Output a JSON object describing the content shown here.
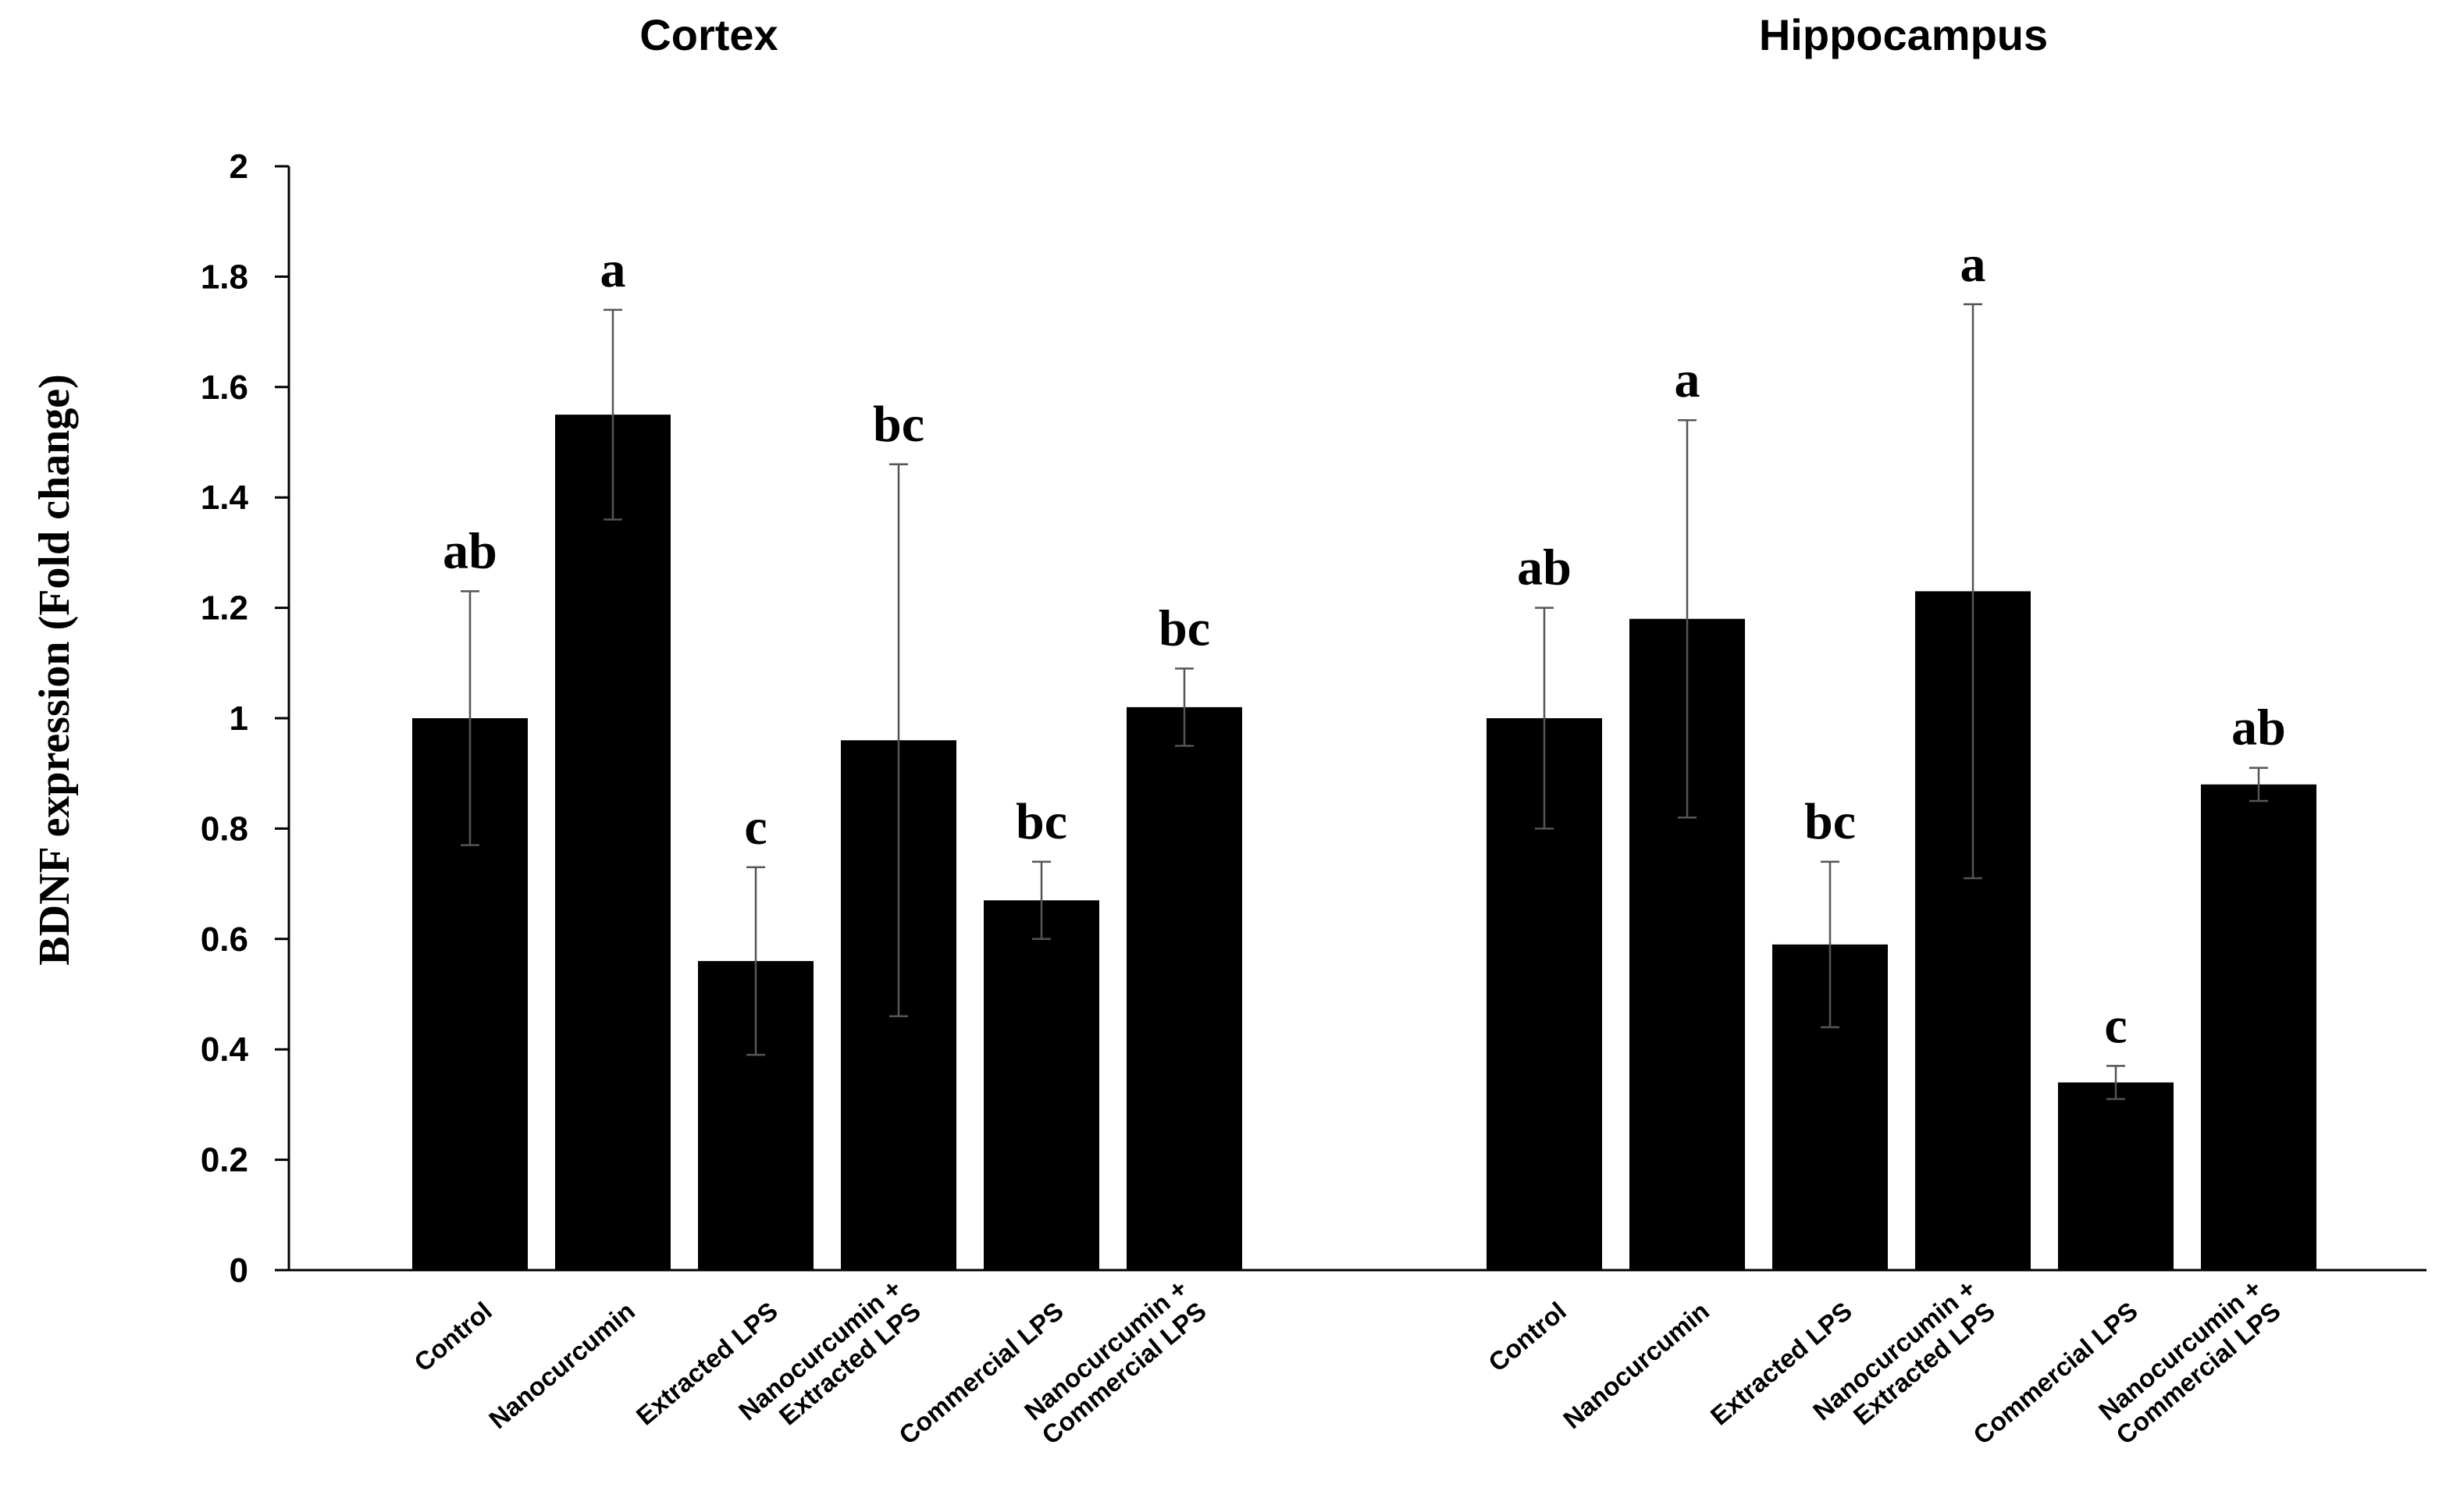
{
  "chart_data": {
    "type": "bar",
    "ylabel": "BDNF expression (Fold change)",
    "ylim": [
      0,
      2
    ],
    "yticks": [
      "0",
      "0.2",
      "0.4",
      "0.6",
      "0.8",
      "1",
      "1.2",
      "1.4",
      "1.6",
      "1.8",
      "2"
    ],
    "bar_color": "#000000",
    "panels": [
      {
        "title": "Cortex",
        "categories": [
          [
            "Control"
          ],
          [
            "Nanocurcumin"
          ],
          [
            "Extracted LPS"
          ],
          [
            "Nanocurcumin +",
            "Extracted LPS"
          ],
          [
            "Commercial LPS"
          ],
          [
            "Nanocurcumin +",
            "Commercial LPS"
          ]
        ],
        "values": [
          1.0,
          1.55,
          0.56,
          0.96,
          0.67,
          1.02
        ],
        "errors": [
          0.23,
          0.19,
          0.17,
          0.5,
          0.07,
          0.07
        ],
        "significance": [
          "ab",
          "a",
          "c",
          "bc",
          "bc",
          "bc"
        ]
      },
      {
        "title": "Hippocampus",
        "categories": [
          [
            "Control"
          ],
          [
            "Nanocurcumin"
          ],
          [
            "Extracted LPS"
          ],
          [
            "Nanocurcumin +",
            "Extracted LPS"
          ],
          [
            "Commercial LPS"
          ],
          [
            "Nanocurcumin +",
            "Commercial LPS"
          ]
        ],
        "values": [
          1.0,
          1.18,
          0.59,
          1.23,
          0.34,
          0.88
        ],
        "errors": [
          0.2,
          0.36,
          0.15,
          0.52,
          0.03,
          0.03
        ],
        "significance": [
          "ab",
          "a",
          "bc",
          "a",
          "c",
          "ab"
        ]
      }
    ]
  }
}
